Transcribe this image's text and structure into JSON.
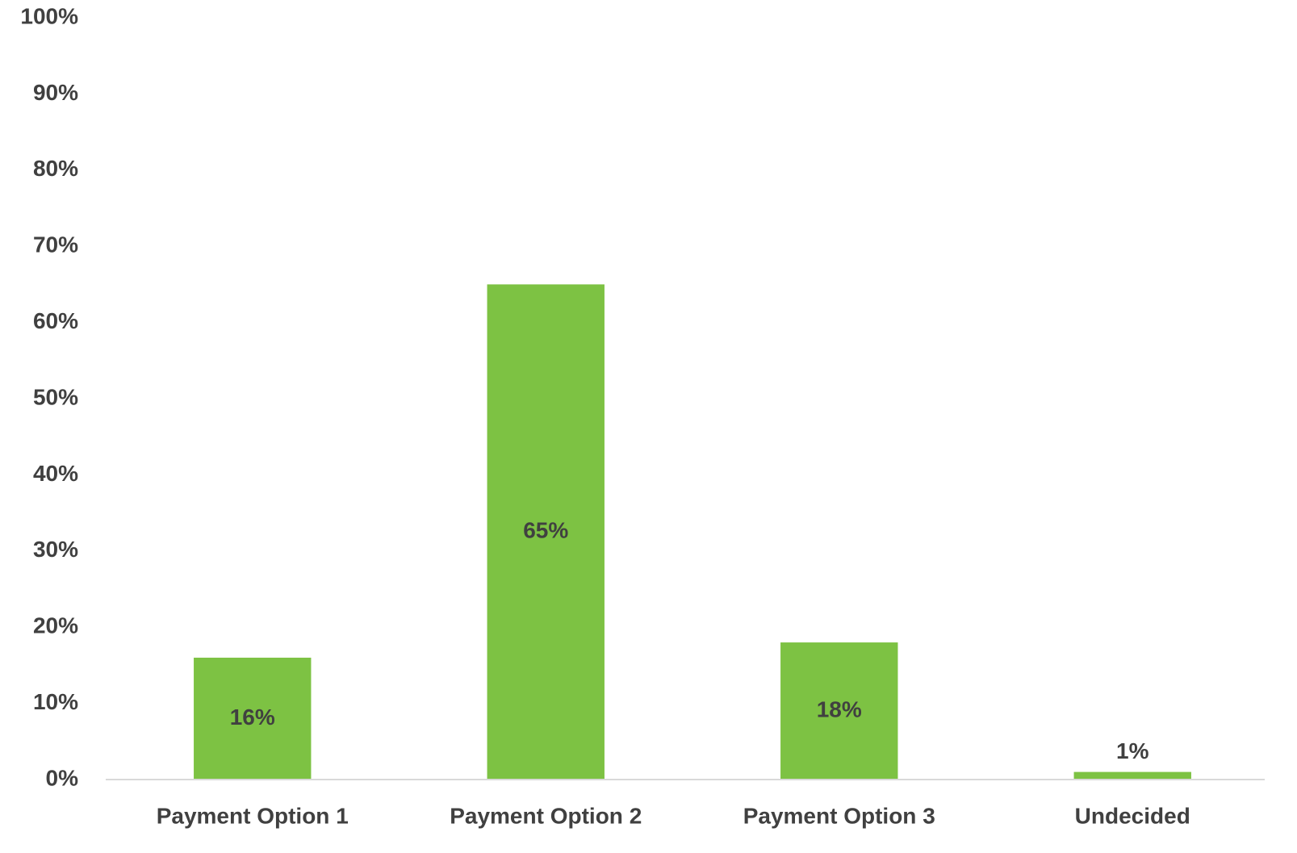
{
  "chart_data": {
    "type": "bar",
    "categories": [
      "Payment Option 1",
      "Payment Option 2",
      "Payment Option 3",
      "Undecided"
    ],
    "values": [
      16,
      65,
      18,
      1
    ],
    "value_labels": [
      "16%",
      "65%",
      "18%",
      "1%"
    ],
    "color": "#7dc243",
    "ylim": [
      0,
      100
    ],
    "yticks": [
      {
        "value": 0,
        "label": "0%"
      },
      {
        "value": 10,
        "label": "10%"
      },
      {
        "value": 20,
        "label": "20%"
      },
      {
        "value": 30,
        "label": "30%"
      },
      {
        "value": 40,
        "label": "40%"
      },
      {
        "value": 50,
        "label": "50%"
      },
      {
        "value": 60,
        "label": "60%"
      },
      {
        "value": 70,
        "label": "70%"
      },
      {
        "value": 80,
        "label": "80%"
      },
      {
        "value": 90,
        "label": "90%"
      },
      {
        "value": 100,
        "label": "100%"
      }
    ],
    "grid": false
  }
}
